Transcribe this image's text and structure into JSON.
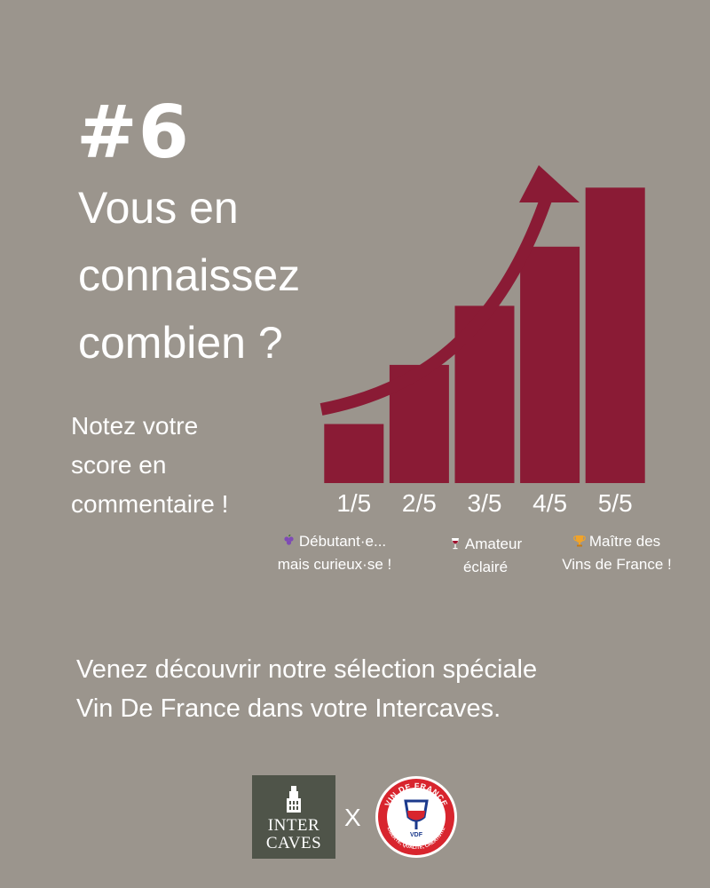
{
  "header": {
    "number": "#6",
    "headline": [
      "Vous en",
      "connaissez",
      "combien ?"
    ],
    "subtext": [
      "Notez votre",
      "score en",
      "commentaire !"
    ]
  },
  "chart_data": {
    "type": "bar",
    "categories": [
      "1/5",
      "2/5",
      "3/5",
      "4/5",
      "5/5"
    ],
    "values": [
      1,
      2,
      3,
      4,
      5
    ],
    "ylim": [
      0,
      5.2
    ],
    "grid": false,
    "bar_color": "#8a1b35",
    "arrow_color": "#8a1b35",
    "title": "",
    "xlabel": "",
    "ylabel": ""
  },
  "legend": [
    {
      "icon": "grapes-icon",
      "lines": [
        "Débutant·e...",
        "mais curieux·se !"
      ]
    },
    {
      "icon": "wine-glass-icon",
      "lines": [
        "Amateur",
        "éclairé"
      ]
    },
    {
      "icon": "trophy-icon",
      "lines": [
        "Maître des",
        "Vins de France !"
      ]
    }
  ],
  "cta": [
    "Venez découvrir notre sélection spéciale",
    "Vin De France dans votre Intercaves."
  ],
  "logos": {
    "intercaves": [
      "INTER",
      "CAVES"
    ],
    "separator": "X",
    "vdf_ring_top": "VIN DE FRANCE",
    "vdf_ring_bottom": "LIBERTÉ, QUALITÉ, CRÉATIVITÉ",
    "vdf_center": "VDF"
  },
  "colors": {
    "background": "#9b958d",
    "accent": "#8a1b35",
    "intercaves_bg": "#4f5449",
    "vdf_blue": "#1b3a8c",
    "vdf_red": "#d8252e"
  }
}
